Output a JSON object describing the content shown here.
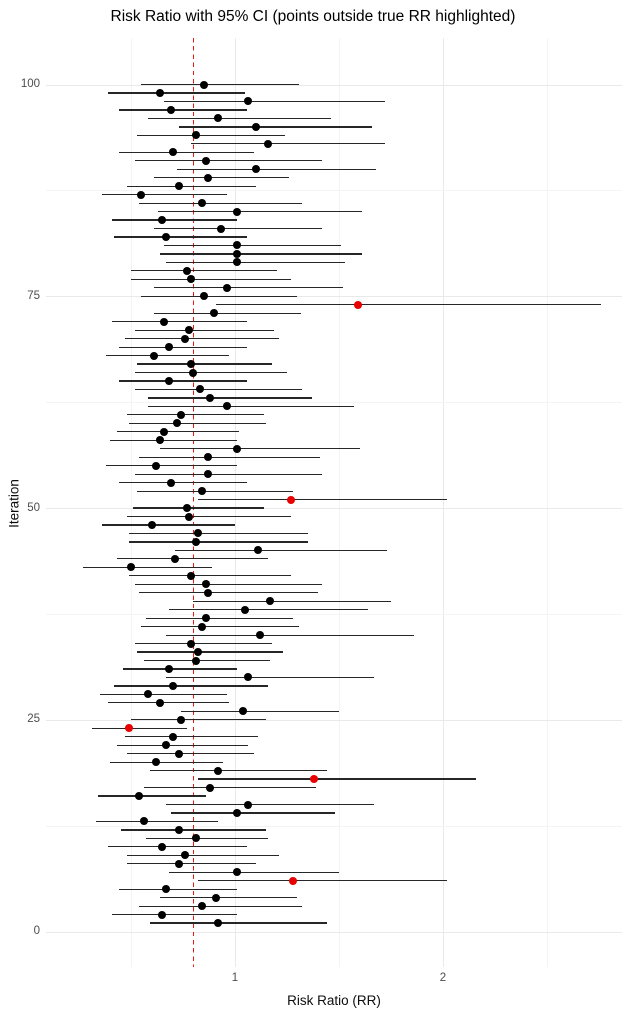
{
  "chart_data": {
    "type": "scatter",
    "subtype": "forest-interval-plot",
    "title": "Risk Ratio with 95% CI (points outside true RR highlighted)",
    "xlabel": "Risk Ratio (RR)",
    "ylabel": "Iteration",
    "x_ticks": [
      1,
      2
    ],
    "x_minor_gridlines": [
      0.5,
      1.5,
      2.5
    ],
    "y_ticks": [
      0,
      25,
      50,
      75,
      100
    ],
    "y_minor_gridlines": [
      12.5,
      37.5,
      62.5,
      87.5
    ],
    "x_domain": [
      0.091,
      2.861
    ],
    "y_domain": [
      -4.19,
      105.49
    ],
    "true_rr": 0.8,
    "true_rr_line_style": "dashed",
    "grid": "on",
    "legend": "none",
    "colors": {
      "point": "#000000",
      "outlier_point": "#e90000",
      "ci_line": "#262626",
      "true_rr_line": "#f01414",
      "grid_major": "#e9e9e9",
      "grid_minor": "#f4f4f4",
      "tick_label": "#4d4d4d",
      "background": "#ffffff"
    },
    "points_columns": [
      "iteration",
      "rr",
      "ci_low",
      "ci_high",
      "outlier"
    ],
    "points": [
      [
        1,
        0.92,
        0.59,
        1.44,
        0
      ],
      [
        2,
        0.65,
        0.41,
        1.01,
        0
      ],
      [
        3,
        0.84,
        0.54,
        1.32,
        0
      ],
      [
        4,
        0.91,
        0.64,
        1.3,
        0
      ],
      [
        5,
        0.67,
        0.44,
        1.01,
        0
      ],
      [
        6,
        1.28,
        0.82,
        2.02,
        1
      ],
      [
        7,
        1.01,
        0.68,
        1.5,
        0
      ],
      [
        8,
        0.73,
        0.48,
        1.1,
        0
      ],
      [
        9,
        0.76,
        0.48,
        1.21,
        0
      ],
      [
        10,
        0.65,
        0.39,
        1.06,
        0
      ],
      [
        11,
        0.81,
        0.57,
        1.16,
        0
      ],
      [
        12,
        0.73,
        0.45,
        1.15,
        0
      ],
      [
        13,
        0.56,
        0.33,
        0.92,
        0
      ],
      [
        14,
        1.01,
        0.69,
        1.48,
        0
      ],
      [
        15,
        1.06,
        0.67,
        1.67,
        0
      ],
      [
        16,
        0.54,
        0.34,
        0.86,
        0
      ],
      [
        17,
        0.88,
        0.56,
        1.39,
        0
      ],
      [
        18,
        1.38,
        0.82,
        2.16,
        1
      ],
      [
        19,
        0.92,
        0.59,
        1.44,
        0
      ],
      [
        20,
        0.62,
        0.4,
        0.94,
        0
      ],
      [
        21,
        0.73,
        0.48,
        1.09,
        0
      ],
      [
        22,
        0.67,
        0.43,
        1.06,
        0
      ],
      [
        23,
        0.7,
        0.47,
        1.11,
        0
      ],
      [
        24,
        0.49,
        0.31,
        0.77,
        1
      ],
      [
        25,
        0.74,
        0.5,
        1.15,
        0
      ],
      [
        26,
        1.04,
        0.74,
        1.5,
        0
      ],
      [
        27,
        0.64,
        0.39,
        0.97,
        0
      ],
      [
        28,
        0.58,
        0.35,
        0.96,
        0
      ],
      [
        29,
        0.7,
        0.42,
        1.16,
        0
      ],
      [
        30,
        1.06,
        0.67,
        1.67,
        0
      ],
      [
        31,
        0.68,
        0.46,
        1.01,
        0
      ],
      [
        32,
        0.81,
        0.56,
        1.17,
        0
      ],
      [
        33,
        0.82,
        0.53,
        1.23,
        0
      ],
      [
        34,
        0.79,
        0.52,
        1.18,
        0
      ],
      [
        35,
        1.12,
        0.67,
        1.86,
        0
      ],
      [
        36,
        0.84,
        0.55,
        1.31,
        0
      ],
      [
        37,
        0.86,
        0.57,
        1.28,
        0
      ],
      [
        38,
        1.05,
        0.68,
        1.64,
        0
      ],
      [
        39,
        1.17,
        0.8,
        1.75,
        0
      ],
      [
        40,
        0.87,
        0.54,
        1.4,
        0
      ],
      [
        41,
        0.86,
        0.52,
        1.42,
        0
      ],
      [
        42,
        0.79,
        0.49,
        1.27,
        0
      ],
      [
        43,
        0.5,
        0.27,
        0.89,
        0
      ],
      [
        44,
        0.71,
        0.43,
        1.16,
        0
      ],
      [
        45,
        1.11,
        0.71,
        1.73,
        0
      ],
      [
        46,
        0.81,
        0.49,
        1.35,
        0
      ],
      [
        47,
        0.82,
        0.49,
        1.35,
        0
      ],
      [
        48,
        0.6,
        0.36,
        1.0,
        0
      ],
      [
        49,
        0.78,
        0.48,
        1.27,
        0
      ],
      [
        50,
        0.77,
        0.51,
        1.14,
        0
      ],
      [
        51,
        1.27,
        0.82,
        2.02,
        1
      ],
      [
        52,
        0.84,
        0.53,
        1.28,
        0
      ],
      [
        53,
        0.69,
        0.44,
        1.06,
        0
      ],
      [
        54,
        0.87,
        0.52,
        1.42,
        0
      ],
      [
        55,
        0.62,
        0.38,
        1.01,
        0
      ],
      [
        56,
        0.87,
        0.54,
        1.41,
        0
      ],
      [
        57,
        1.01,
        0.64,
        1.6,
        0
      ],
      [
        58,
        0.64,
        0.4,
        1.01,
        0
      ],
      [
        59,
        0.66,
        0.43,
        1.02,
        0
      ],
      [
        60,
        0.72,
        0.49,
        1.15,
        0
      ],
      [
        61,
        0.74,
        0.48,
        1.14,
        0
      ],
      [
        62,
        0.96,
        0.58,
        1.57,
        0
      ],
      [
        63,
        0.88,
        0.58,
        1.37,
        0
      ],
      [
        64,
        0.83,
        0.52,
        1.32,
        0
      ],
      [
        65,
        0.68,
        0.44,
        1.06,
        0
      ],
      [
        66,
        0.8,
        0.52,
        1.25,
        0
      ],
      [
        67,
        0.79,
        0.53,
        1.18,
        0
      ],
      [
        68,
        0.61,
        0.38,
        0.97,
        0
      ],
      [
        69,
        0.68,
        0.44,
        1.06,
        0
      ],
      [
        70,
        0.76,
        0.47,
        1.21,
        0
      ],
      [
        71,
        0.78,
        0.52,
        1.19,
        0
      ],
      [
        72,
        0.66,
        0.41,
        1.06,
        0
      ],
      [
        73,
        0.9,
        0.61,
        1.32,
        0
      ],
      [
        74,
        1.59,
        0.91,
        2.76,
        1
      ],
      [
        75,
        0.85,
        0.55,
        1.3,
        0
      ],
      [
        76,
        0.96,
        0.61,
        1.52,
        0
      ],
      [
        77,
        0.79,
        0.5,
        1.27,
        0
      ],
      [
        78,
        0.77,
        0.5,
        1.2,
        0
      ],
      [
        79,
        1.01,
        0.67,
        1.53,
        0
      ],
      [
        80,
        1.01,
        0.64,
        1.61,
        0
      ],
      [
        81,
        1.01,
        0.66,
        1.51,
        0
      ],
      [
        82,
        0.67,
        0.42,
        1.06,
        0
      ],
      [
        83,
        0.93,
        0.61,
        1.42,
        0
      ],
      [
        84,
        0.65,
        0.41,
        1.01,
        0
      ],
      [
        85,
        1.01,
        0.63,
        1.61,
        0
      ],
      [
        86,
        0.84,
        0.54,
        1.32,
        0
      ],
      [
        87,
        0.55,
        0.36,
        0.96,
        0
      ],
      [
        88,
        0.73,
        0.48,
        1.1,
        0
      ],
      [
        89,
        0.87,
        0.61,
        1.26,
        0
      ],
      [
        90,
        1.1,
        0.72,
        1.68,
        0
      ],
      [
        91,
        0.86,
        0.52,
        1.42,
        0
      ],
      [
        92,
        0.7,
        0.44,
        1.09,
        0
      ],
      [
        93,
        1.16,
        0.79,
        1.72,
        0
      ],
      [
        94,
        0.81,
        0.53,
        1.24,
        0
      ],
      [
        95,
        1.1,
        0.73,
        1.66,
        0
      ],
      [
        96,
        0.92,
        0.58,
        1.46,
        0
      ],
      [
        97,
        0.69,
        0.44,
        1.06,
        0
      ],
      [
        98,
        1.06,
        0.66,
        1.72,
        0
      ],
      [
        99,
        0.64,
        0.39,
        1.05,
        0
      ],
      [
        100,
        0.85,
        0.55,
        1.31,
        0
      ]
    ]
  }
}
